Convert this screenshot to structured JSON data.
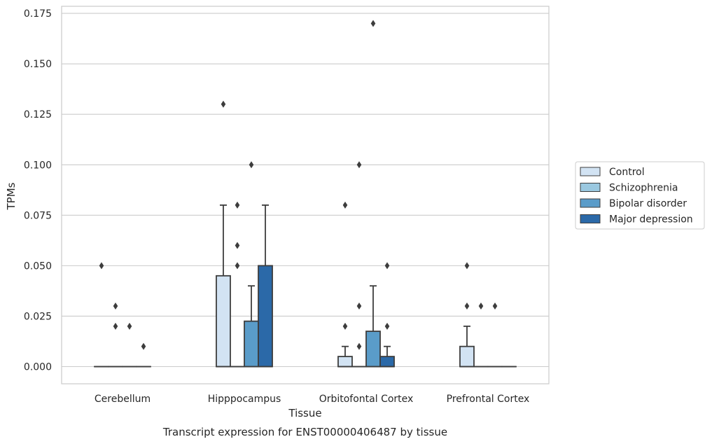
{
  "chart_data": {
    "type": "box",
    "title": "",
    "caption": "Transcript expression for ENST00000406487 by tissue",
    "xlabel": "Tissue",
    "ylabel": "TPMs",
    "ylim": [
      -0.0085,
      0.1785
    ],
    "yticks": [
      "0.000",
      "0.025",
      "0.050",
      "0.075",
      "0.100",
      "0.125",
      "0.150",
      "0.175"
    ],
    "yticks_values": [
      0,
      0.025,
      0.05,
      0.075,
      0.1,
      0.125,
      0.15,
      0.175
    ],
    "grid": "horizontal",
    "legend_position": "right",
    "categories": [
      "Cerebellum",
      "Hipppocampus",
      "Orbitofontal Cortex",
      "Prefrontal Cortex"
    ],
    "series": [
      {
        "name": "Control",
        "color": "#d2e3f3",
        "boxes": [
          {
            "q1": 0,
            "median": 0,
            "q3": 0,
            "whislo": 0,
            "whishi": 0,
            "fliers": [
              0.05
            ]
          },
          {
            "q1": 0,
            "median": 0,
            "q3": 0.045,
            "whislo": 0,
            "whishi": 0.08,
            "fliers": [
              0.13
            ]
          },
          {
            "q1": 0,
            "median": 0,
            "q3": 0.005,
            "whislo": 0,
            "whishi": 0.01,
            "fliers": [
              0.02,
              0.08
            ]
          },
          {
            "q1": 0,
            "median": 0,
            "q3": 0.01,
            "whislo": 0,
            "whishi": 0.02,
            "fliers": [
              0.03,
              0.05
            ]
          }
        ]
      },
      {
        "name": "Schizophrenia",
        "color": "#9ac8e0",
        "boxes": [
          {
            "q1": 0,
            "median": 0,
            "q3": 0,
            "whislo": 0,
            "whishi": 0,
            "fliers": [
              0.02,
              0.03
            ]
          },
          {
            "q1": 0,
            "median": 0,
            "q3": 0,
            "whislo": 0,
            "whishi": 0,
            "fliers": [
              0.05,
              0.06,
              0.08
            ]
          },
          {
            "q1": 0,
            "median": 0,
            "q3": 0,
            "whislo": 0,
            "whishi": 0,
            "fliers": [
              0.01,
              0.03,
              0.1
            ]
          },
          {
            "q1": 0,
            "median": 0,
            "q3": 0,
            "whislo": 0,
            "whishi": 0,
            "fliers": [
              0.03
            ]
          }
        ]
      },
      {
        "name": "Bipolar disorder",
        "color": "#5a9cc9",
        "boxes": [
          {
            "q1": 0,
            "median": 0,
            "q3": 0,
            "whislo": 0,
            "whishi": 0,
            "fliers": [
              0.02
            ]
          },
          {
            "q1": 0,
            "median": 0,
            "q3": 0.0225,
            "whislo": 0,
            "whishi": 0.04,
            "fliers": [
              0.1
            ]
          },
          {
            "q1": 0,
            "median": 0,
            "q3": 0.0175,
            "whislo": 0,
            "whishi": 0.04,
            "fliers": [
              0.17
            ]
          },
          {
            "q1": 0,
            "median": 0,
            "q3": 0,
            "whislo": 0,
            "whishi": 0,
            "fliers": [
              0.03
            ]
          }
        ]
      },
      {
        "name": "Major depression",
        "color": "#2b69a8",
        "boxes": [
          {
            "q1": 0,
            "median": 0,
            "q3": 0,
            "whislo": 0,
            "whishi": 0,
            "fliers": [
              0.01
            ]
          },
          {
            "q1": 0,
            "median": 0,
            "q3": 0.05,
            "whislo": 0,
            "whishi": 0.08,
            "fliers": []
          },
          {
            "q1": 0,
            "median": 0,
            "q3": 0.005,
            "whislo": 0,
            "whishi": 0.01,
            "fliers": [
              0.02,
              0.05
            ]
          },
          {
            "q1": 0,
            "median": 0,
            "q3": 0,
            "whislo": 0,
            "whishi": 0,
            "fliers": []
          }
        ]
      }
    ]
  }
}
